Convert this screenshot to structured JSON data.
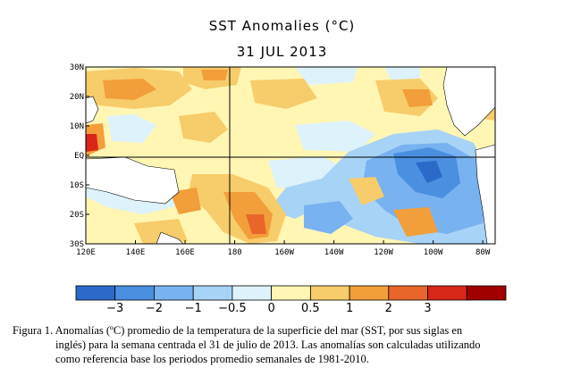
{
  "title": "SST Anomalies (°C)",
  "date": "31 JUL 2013",
  "map": {
    "lat_labels": [
      "30N",
      "20N",
      "10N",
      "EQ",
      "10S",
      "20S",
      "30S"
    ],
    "lon_labels": [
      "120E",
      "140E",
      "160E",
      "180",
      "160W",
      "140W",
      "120W",
      "100W",
      "80W"
    ],
    "lat_range": [
      -30,
      30
    ],
    "lon_range": [
      120,
      285
    ]
  },
  "colorbar": {
    "labels": [
      "−3",
      "−2",
      "−1",
      "−0.5",
      "0",
      "0.5",
      "1",
      "2",
      "3"
    ],
    "colors": [
      "#2b6ac8",
      "#4a8fe0",
      "#78b2f0",
      "#a7d3f6",
      "#ddf2fb",
      "#fff6b4",
      "#f7cc6a",
      "#f29e3a",
      "#e8662a",
      "#d82618",
      "#a00000"
    ]
  },
  "caption": {
    "line1": "Figura 1. Anomalías (ºC) promedio de la temperatura de la superficie del mar (SST, por sus siglas en",
    "line2": "inglés) para la semana centrada el 31 de julio de 2013.   Las anomalías son calculadas utilizando",
    "line3": "como referencia base los periodos promedio semanales de 1981-2010."
  }
}
